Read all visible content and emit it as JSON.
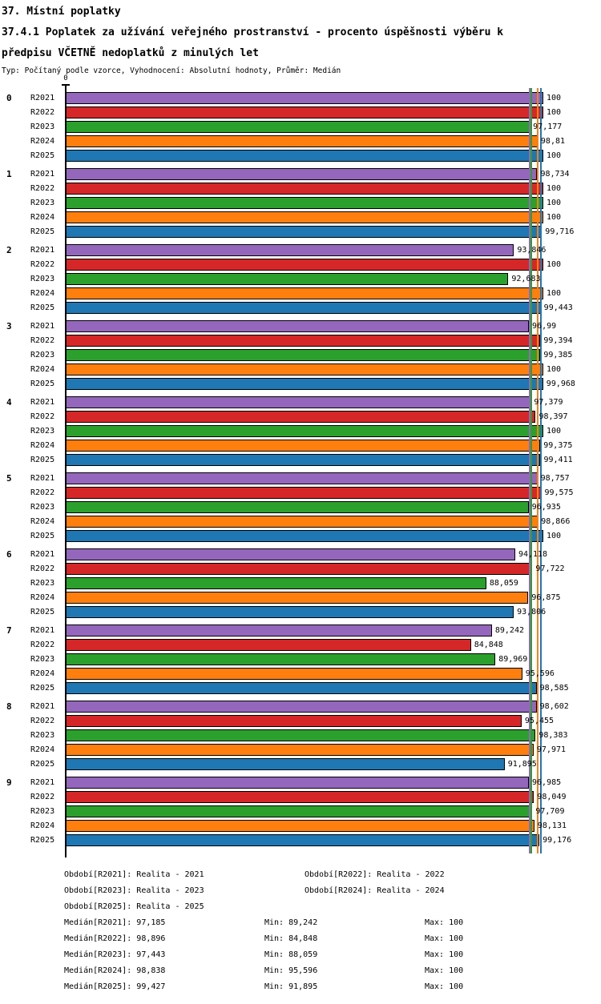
{
  "title": {
    "line1": "37. Místní poplatky",
    "line2": "37.4.1 Poplatek za užívání veřejného prostranství - procento úspěšnosti výběru k",
    "line3": "předpisu VČETNĚ nedoplatků z minulých let",
    "subtitle": "Typ: Počítaný podle vzorce, Vyhodnocení: Absolutní hodnoty, Průměr: Medián"
  },
  "chart_data": {
    "type": "bar",
    "orientation": "horizontal",
    "grid": false,
    "axis": {
      "origin_label": "0",
      "xmin": 0,
      "xmax": 100
    },
    "decimal_separator": ",",
    "series": [
      {
        "key": "R2021",
        "color": "#9467bd",
        "period": "Realita - 2021",
        "median": "97,185",
        "min": "89,242",
        "max": "100"
      },
      {
        "key": "R2022",
        "color": "#d62728",
        "period": "Realita - 2022",
        "median": "98,896",
        "min": "84,848",
        "max": "100"
      },
      {
        "key": "R2023",
        "color": "#2ca02c",
        "period": "Realita - 2023",
        "median": "97,443",
        "min": "88,059",
        "max": "100"
      },
      {
        "key": "R2024",
        "color": "#ff7f0e",
        "period": "Realita - 2024",
        "median": "98,838",
        "min": "95,596",
        "max": "100"
      },
      {
        "key": "R2025",
        "color": "#1f77b4",
        "period": "Realita - 2025",
        "median": "99,427",
        "min": "91,895",
        "max": "100"
      }
    ],
    "groups": [
      {
        "label": "0",
        "values": [
          "100",
          "100",
          "97,177",
          "98,81",
          "100"
        ]
      },
      {
        "label": "1",
        "values": [
          "98,734",
          "100",
          "100",
          "100",
          "99,716"
        ]
      },
      {
        "label": "2",
        "values": [
          "93,846",
          "100",
          "92,683",
          "100",
          "99,443"
        ]
      },
      {
        "label": "3",
        "values": [
          "96,99",
          "99,394",
          "99,385",
          "100",
          "99,968"
        ]
      },
      {
        "label": "4",
        "values": [
          "97,379",
          "98,397",
          "100",
          "99,375",
          "99,411"
        ]
      },
      {
        "label": "5",
        "values": [
          "98,757",
          "99,575",
          "96,935",
          "98,866",
          "100"
        ]
      },
      {
        "label": "6",
        "values": [
          "94,118",
          "97,722",
          "88,059",
          "96,875",
          "93,806"
        ]
      },
      {
        "label": "7",
        "values": [
          "89,242",
          "84,848",
          "89,969",
          "95,596",
          "98,585"
        ]
      },
      {
        "label": "8",
        "values": [
          "98,602",
          "95,455",
          "98,383",
          "97,971",
          "91,895"
        ]
      },
      {
        "label": "9",
        "values": [
          "96,985",
          "98,049",
          "97,709",
          "98,131",
          "99,176"
        ]
      }
    ]
  },
  "footer": {
    "period_prefix": "Období",
    "median_prefix": "Medián",
    "min_prefix": "Min:",
    "max_prefix": "Max:"
  }
}
